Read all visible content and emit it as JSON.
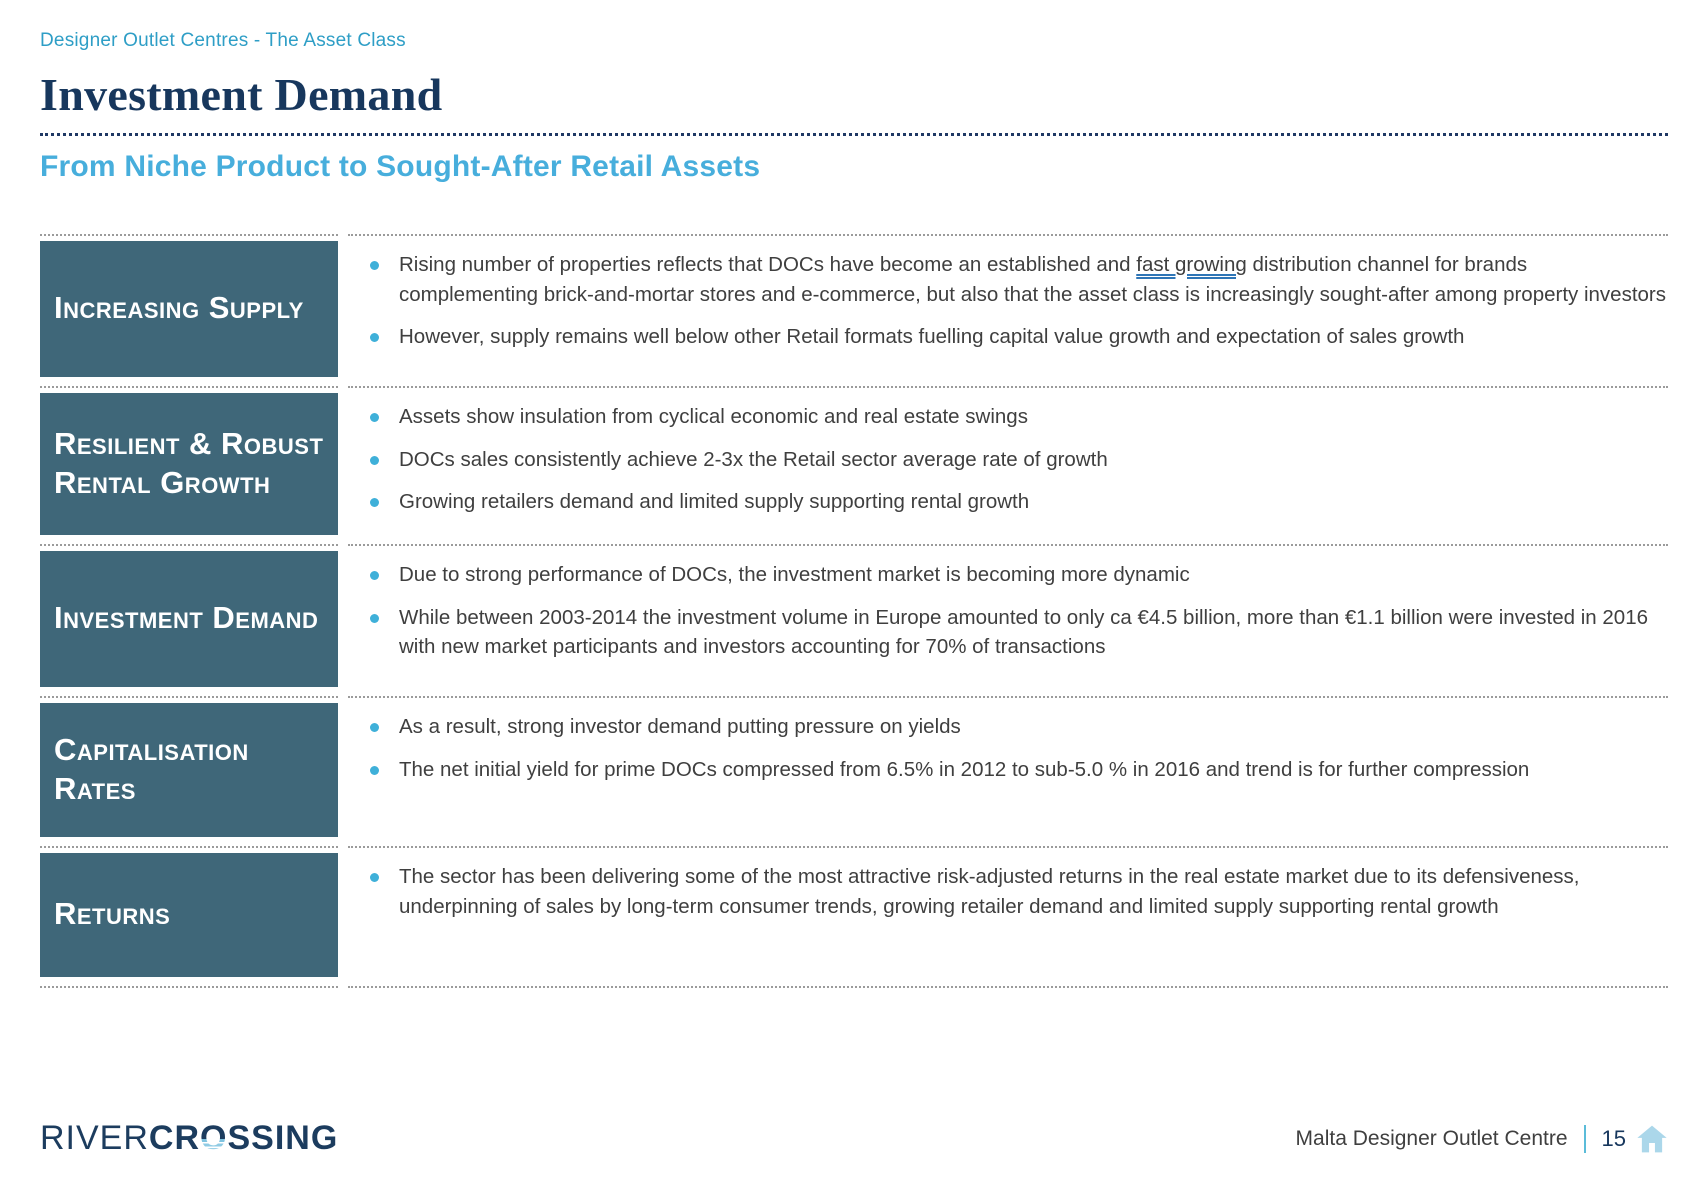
{
  "page": {
    "breadcrumb": "Designer Outlet Centres - The Asset Class",
    "title": "Investment Demand",
    "subtitle": "From Niche Product to Sought-After Retail Assets"
  },
  "colors": {
    "breadcrumb_teal": "#2e9ec6",
    "title_navy": "#17375d",
    "subtitle_blue": "#47aedc",
    "label_box_teal": "#3f6779",
    "bullet_dot_cyan": "#3fb0d9",
    "body_text_gray": "#3f3f3f",
    "link_underline_blue": "#2e75b6",
    "divider_navy": "#1f3864",
    "row_divider_gray": "#9b9b9b",
    "footer_icon_blue": "#abd7ea"
  },
  "table": {
    "rows": [
      {
        "label": "Increasing Supply",
        "bullets": [
          {
            "segments": [
              {
                "text": "Rising number of properties reflects that DOCs have become an established and "
              },
              {
                "text": "fast growing",
                "style": "link-underline"
              },
              {
                "text": " distribution channel for brands complementing brick-and-mortar stores and e-commerce, but also that the asset class is increasingly sought-after among property investors"
              }
            ]
          },
          {
            "segments": [
              {
                "text": "However, supply remains well below other Retail formats fuelling capital value growth and expectation of sales growth"
              }
            ]
          }
        ]
      },
      {
        "label": "Resilient & Robust Rental Growth",
        "bullets": [
          {
            "segments": [
              {
                "text": "Assets show insulation from cyclical economic and real estate swings"
              }
            ]
          },
          {
            "segments": [
              {
                "text": "DOCs sales consistently achieve 2-3x the Retail sector average rate of growth"
              }
            ]
          },
          {
            "segments": [
              {
                "text": "Growing retailers demand and limited supply supporting rental growth"
              }
            ]
          }
        ]
      },
      {
        "label": "Investment Demand",
        "bullets": [
          {
            "segments": [
              {
                "text": "Due to strong performance of DOCs, the investment market is becoming more dynamic"
              }
            ]
          },
          {
            "segments": [
              {
                "text": "While between 2003-2014 the investment volume in Europe amounted to only ca €4.5 billion, more than €1.1 billion were invested in 2016 with new market participants and investors accounting for 70% of transactions"
              }
            ]
          }
        ]
      },
      {
        "label": "Capitalisation Rates",
        "bullets": [
          {
            "segments": [
              {
                "text": "As a result, strong investor demand putting pressure on yields"
              }
            ]
          },
          {
            "segments": [
              {
                "text": "The net initial yield for prime DOCs compressed from 6.5% in 2012 to sub-5.0 % in 2016 and trend is for further compression"
              }
            ]
          }
        ]
      },
      {
        "label": "Returns",
        "bullets": [
          {
            "segments": [
              {
                "text": "The sector has been delivering some of the most attractive risk-adjusted returns in the real estate market due to its defensiveness, underpinning of sales by long-term consumer trends, growing retailer demand and limited supply supporting rental growth"
              }
            ]
          }
        ]
      }
    ]
  },
  "footer": {
    "logo_river": "RIVER",
    "logo_crossing_pre": "CR",
    "logo_o": "O",
    "logo_crossing_post": "SSING",
    "project": "Malta Designer Outlet Centre",
    "page_number": "15",
    "home_icon": "house-icon"
  }
}
